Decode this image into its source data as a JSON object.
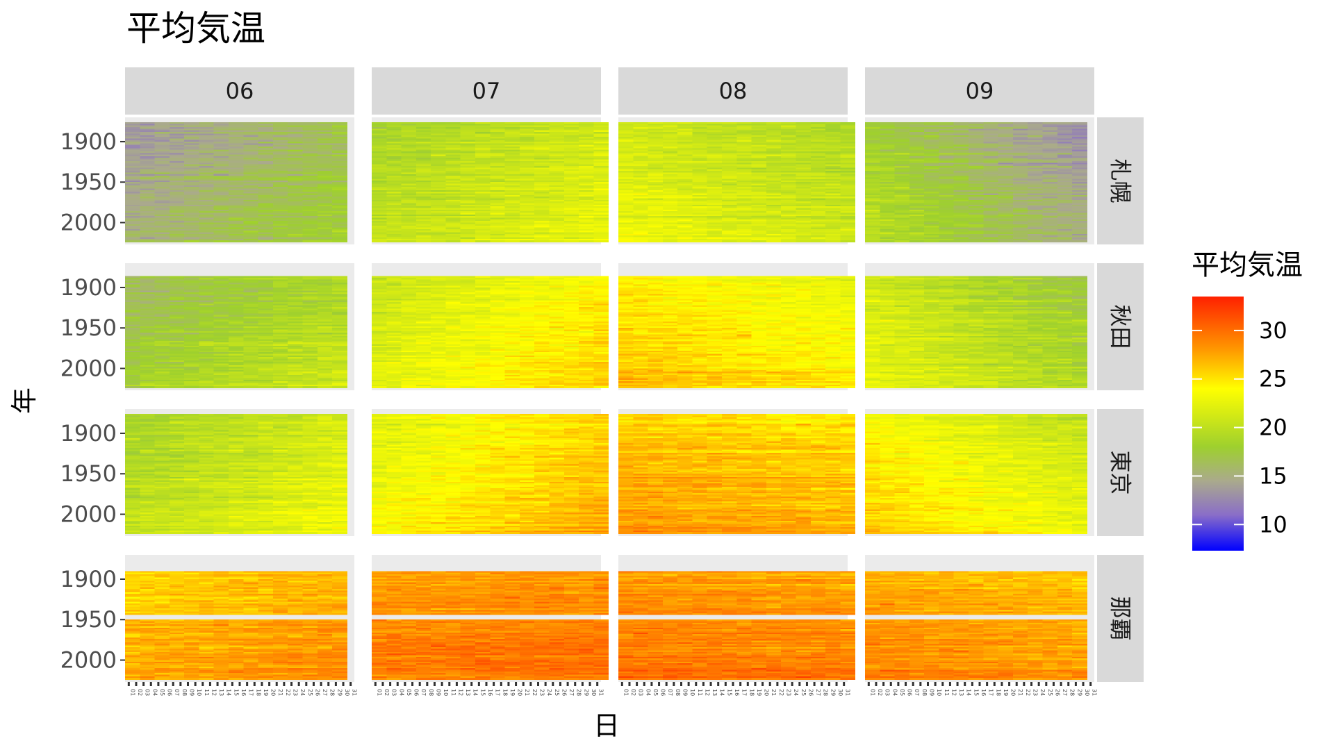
{
  "title": "平均気温",
  "chart_data": {
    "type": "heatmap",
    "title": "平均気温",
    "xlabel": "日",
    "ylabel": "年",
    "col_facets": [
      "06",
      "07",
      "08",
      "09"
    ],
    "row_facets": [
      "札幌",
      "秋田",
      "東京",
      "那覇"
    ],
    "x_categories": [
      "01",
      "02",
      "03",
      "04",
      "05",
      "06",
      "07",
      "08",
      "09",
      "10",
      "11",
      "12",
      "13",
      "14",
      "15",
      "16",
      "17",
      "18",
      "19",
      "20",
      "21",
      "22",
      "23",
      "24",
      "25",
      "26",
      "27",
      "28",
      "29",
      "30",
      "31"
    ],
    "y_ticks": [
      1900,
      1950,
      2000
    ],
    "year_range": {
      "札幌": [
        1876,
        2022
      ],
      "秋田": [
        1886,
        2022
      ],
      "東京": [
        1876,
        2022
      ],
      "那覇": [
        1890,
        2022
      ]
    },
    "missing_years": {
      "那覇": [
        1944,
        1949
      ]
    },
    "approx_mean_temperature": {
      "札幌": {
        "06": [
          14.5,
          17.5
        ],
        "07": [
          19.5,
          22.0
        ],
        "08": [
          22.0,
          20.0
        ],
        "09": [
          19.0,
          14.0
        ]
      },
      "秋田": {
        "06": [
          17.0,
          20.0
        ],
        "07": [
          21.5,
          25.0
        ],
        "08": [
          25.5,
          23.5
        ],
        "09": [
          22.0,
          18.0
        ]
      },
      "東京": {
        "06": [
          19.5,
          22.5
        ],
        "07": [
          23.0,
          26.5
        ],
        "08": [
          27.0,
          26.0
        ],
        "09": [
          25.0,
          21.5
        ]
      },
      "那覇": {
        "06": [
          26.5,
          28.0
        ],
        "07": [
          28.5,
          29.0
        ],
        "08": [
          29.0,
          28.5
        ],
        "09": [
          28.0,
          27.0
        ]
      }
    },
    "warming_trend_per_century": 1.5,
    "legend": {
      "title": "平均気温",
      "ticks": [
        10,
        15,
        20,
        25,
        30
      ],
      "range": [
        7.3,
        33.5
      ],
      "colors": [
        "#0000ff",
        "#8a6ec8",
        "#aaaa8c",
        "#9ed02e",
        "#ffff00",
        "#ff9900",
        "#ff2000"
      ],
      "placement": "right"
    }
  }
}
